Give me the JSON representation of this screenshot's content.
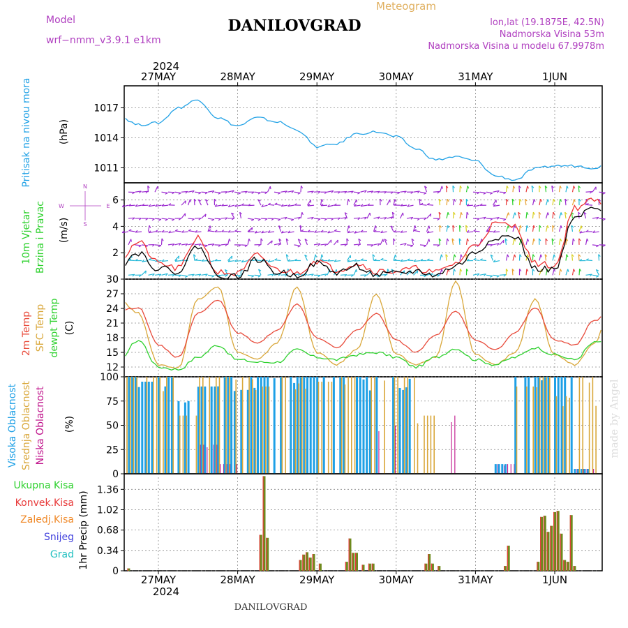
{
  "header": {
    "model_label": "Model",
    "model_name": "wrf−nmm_v3.9.1  e1km",
    "title": "DANILOVGRAD",
    "meteogram_label": "Meteogram",
    "location": "lon,lat (19.1875E, 42.5N)",
    "elevation": "Nadmorska Visina 53m",
    "model_elevation": "Nadmorska Visina u modelu 67.9978m",
    "year_top": "2024",
    "year_bottom": "2024",
    "footer_title": "DANILOVGRAD",
    "watermark": "made by Angel"
  },
  "colors": {
    "pressure": "#22a2e6",
    "wind_speed": "#000000",
    "wind_gust": "#ee3333",
    "t2m": "#e84a3a",
    "sfc": "#d9a73a",
    "dewpt": "#2ed12e",
    "cloud_high": "#1ea0e6",
    "cloud_mid": "#d9a73a",
    "cloud_low": "#c0148c",
    "precip_total": "#2ed12e",
    "precip_conv": "#e83a3a",
    "precip_strat": "#f08a2a",
    "snow": "#4444dd",
    "hail": "#22c0c0",
    "precip_bar": "#6e8a1e"
  },
  "chart_data": [
    {
      "type": "line",
      "panel": "pressure",
      "ylabel_1": "Pritisak na nivou mora",
      "ylabel_2": "(hPa)",
      "x_start": "2024-05-26 12:00",
      "x_step_hours": 6,
      "ylim": [
        1009.5,
        1019.2
      ],
      "yticks": [
        1011,
        1014,
        1017
      ],
      "x_ticks": [
        "27MAY",
        "28MAY",
        "29MAY",
        "30MAY",
        "31MAY",
        "1JUN"
      ],
      "values": [
        1016.2,
        1015.3,
        1015.5,
        1017.0,
        1017.8,
        1016.0,
        1015.2,
        1016.0,
        1015.6,
        1014.8,
        1013.1,
        1013.4,
        1014.4,
        1014.6,
        1014.1,
        1012.9,
        1011.8,
        1012.1,
        1011.7,
        1010.2,
        1009.8,
        1010.9,
        1011.2,
        1011.2,
        1011.0,
        1012.0,
        1013.8,
        1014.0,
        1014.9,
        1014.7
      ]
    },
    {
      "type": "line",
      "panel": "wind",
      "ylabel_1": "10m Vjetar",
      "ylabel_2": "Brzina i Pravac",
      "ylabel_3": "(m/s)",
      "direction_key": [
        "N",
        "W",
        "E",
        "S"
      ],
      "ylim": [
        0,
        7.3
      ],
      "yticks": [
        0,
        2,
        4,
        6
      ],
      "series": [
        {
          "values": [
            1.0,
            2.0,
            0.8,
            0.6,
            2.5,
            0.3,
            0.2,
            1.5,
            0.5,
            0.3,
            1.2,
            0.5,
            1.0,
            0.3,
            0.4,
            0.6,
            0.3,
            1.0,
            2.0,
            3.2,
            3.2,
            0.8,
            0.7,
            4.6,
            5.4,
            3.6,
            3.0,
            3.4,
            0.7,
            4.8
          ]
        },
        {
          "values": [
            1.4,
            2.8,
            1.2,
            0.8,
            3.2,
            0.5,
            0.4,
            1.8,
            0.7,
            0.5,
            1.4,
            0.7,
            1.2,
            0.6,
            0.6,
            0.8,
            0.5,
            1.2,
            2.6,
            4.2,
            4.0,
            1.2,
            1.0,
            5.4,
            6.0,
            4.4,
            3.6,
            4.0,
            1.0,
            5.4
          ]
        }
      ]
    },
    {
      "type": "line",
      "panel": "temperature",
      "ylabel_1": "2m Temp",
      "ylabel_2": "SFC Temp",
      "ylabel_3": "dewpt Temp",
      "ylabel_4": "(C)",
      "ylim": [
        10,
        30
      ],
      "yticks": [
        12,
        15,
        18,
        21,
        24,
        27,
        30
      ],
      "series": [
        {
          "name": "2m Temp",
          "values": [
            23.5,
            24.2,
            16.5,
            14.0,
            23.0,
            25.8,
            19.0,
            17.0,
            19.5,
            24.8,
            18.0,
            16.0,
            19.5,
            23.0,
            17.5,
            15.0,
            18.5,
            23.5,
            17.5,
            15.5,
            19.0,
            24.2,
            17.5,
            16.5,
            21.5,
            24.5,
            19.0,
            17.5,
            20.5,
            26.5
          ]
        },
        {
          "name": "SFC Temp",
          "values": [
            26.0,
            23.0,
            12.5,
            11.8,
            26.0,
            28.5,
            15.0,
            13.5,
            17.0,
            28.5,
            15.0,
            12.5,
            15.5,
            27.0,
            14.5,
            12.5,
            14.0,
            29.5,
            14.5,
            12.5,
            15.0,
            25.8,
            14.5,
            12.5,
            17.0,
            27.5,
            15.0,
            13.0,
            17.0,
            28.5
          ]
        },
        {
          "name": "dewpt Temp",
          "values": [
            13.5,
            17.5,
            12.0,
            11.5,
            14.0,
            16.5,
            13.5,
            13.0,
            13.0,
            15.5,
            14.0,
            13.5,
            14.5,
            15.0,
            14.0,
            12.0,
            14.0,
            15.8,
            13.5,
            12.5,
            14.0,
            16.0,
            14.5,
            13.5,
            17.0,
            18.0,
            16.0,
            15.0,
            16.0,
            14.5
          ]
        }
      ]
    },
    {
      "type": "bar",
      "panel": "clouds",
      "ylabel_1": "Visoka Oblacnost",
      "ylabel_2": "Srednja Oblacnost",
      "ylabel_3": "Niska Oblacnost",
      "ylabel_4": "(%)",
      "ylim": [
        0,
        100
      ],
      "yticks": [
        0,
        25,
        50,
        75,
        100
      ],
      "series": [
        {
          "name": "Visoka Oblacnost",
          "values": [
            100,
            95,
            100,
            75,
            90,
            100,
            100,
            100,
            100,
            100,
            100,
            100,
            100,
            100,
            100,
            0,
            0,
            0,
            0,
            10,
            100,
            100,
            100,
            5,
            0,
            0,
            0,
            0,
            0,
            0
          ]
        },
        {
          "name": "Srednja Oblacnost",
          "values": [
            100,
            100,
            100,
            60,
            100,
            100,
            100,
            90,
            100,
            100,
            95,
            100,
            100,
            100,
            100,
            60,
            0,
            0,
            0,
            0,
            90,
            100,
            80,
            100,
            70,
            90,
            100,
            0,
            30,
            0
          ]
        },
        {
          "name": "Niska Oblacnost",
          "values": [
            0,
            0,
            0,
            0,
            30,
            10,
            0,
            0,
            0,
            0,
            0,
            0,
            0,
            50,
            0,
            0,
            60,
            0,
            0,
            10,
            0,
            0,
            0,
            5,
            60,
            80,
            0,
            0,
            0,
            0
          ]
        }
      ]
    },
    {
      "type": "bar",
      "panel": "precipitation",
      "ylabel": "1hr Precip (mm)",
      "legend": [
        "Ukupna Kisa",
        "Konvek.Kisa",
        "Zaledj.Kisa",
        "Snijeg",
        "Grad"
      ],
      "ylim": [
        0,
        1.62
      ],
      "yticks": [
        0,
        0.34,
        0.68,
        1.02,
        1.36
      ],
      "x_ticks": [
        "27MAY",
        "28MAY",
        "29MAY",
        "30MAY",
        "31MAY",
        "1JUN"
      ],
      "bars": [
        {
          "x": "2024-05-26 15:00",
          "value": 0.04
        },
        {
          "x": "2024-05-28 07:00",
          "value": 0.6
        },
        {
          "x": "2024-05-28 08:00",
          "value": 1.58
        },
        {
          "x": "2024-05-28 09:00",
          "value": 0.55
        },
        {
          "x": "2024-05-28 19:00",
          "value": 0.18
        },
        {
          "x": "2024-05-28 20:00",
          "value": 0.27
        },
        {
          "x": "2024-05-28 21:00",
          "value": 0.31
        },
        {
          "x": "2024-05-28 22:00",
          "value": 0.22
        },
        {
          "x": "2024-05-28 23:00",
          "value": 0.28
        },
        {
          "x": "2024-05-29 01:00",
          "value": 0.12
        },
        {
          "x": "2024-05-29 09:00",
          "value": 0.15
        },
        {
          "x": "2024-05-29 10:00",
          "value": 0.54
        },
        {
          "x": "2024-05-29 11:00",
          "value": 0.3
        },
        {
          "x": "2024-05-29 12:00",
          "value": 0.3
        },
        {
          "x": "2024-05-29 14:00",
          "value": 0.1
        },
        {
          "x": "2024-05-29 16:00",
          "value": 0.12
        },
        {
          "x": "2024-05-29 17:00",
          "value": 0.12
        },
        {
          "x": "2024-05-30 09:00",
          "value": 0.12
        },
        {
          "x": "2024-05-30 10:00",
          "value": 0.28
        },
        {
          "x": "2024-05-30 11:00",
          "value": 0.12
        },
        {
          "x": "2024-05-30 13:00",
          "value": 0.08
        },
        {
          "x": "2024-05-31 09:00",
          "value": 0.08
        },
        {
          "x": "2024-05-31 10:00",
          "value": 0.42
        },
        {
          "x": "2024-05-31 19:00",
          "value": 0.15
        },
        {
          "x": "2024-05-31 20:00",
          "value": 0.9
        },
        {
          "x": "2024-05-31 21:00",
          "value": 0.92
        },
        {
          "x": "2024-05-31 22:00",
          "value": 0.65
        },
        {
          "x": "2024-05-31 23:00",
          "value": 0.75
        },
        {
          "x": "2024-06-01 00:00",
          "value": 0.98
        },
        {
          "x": "2024-06-01 01:00",
          "value": 1.0
        },
        {
          "x": "2024-06-01 02:00",
          "value": 0.62
        },
        {
          "x": "2024-06-01 03:00",
          "value": 0.18
        },
        {
          "x": "2024-06-01 04:00",
          "value": 0.15
        },
        {
          "x": "2024-06-01 05:00",
          "value": 0.93
        },
        {
          "x": "2024-06-01 06:00",
          "value": 0.08
        }
      ]
    }
  ]
}
